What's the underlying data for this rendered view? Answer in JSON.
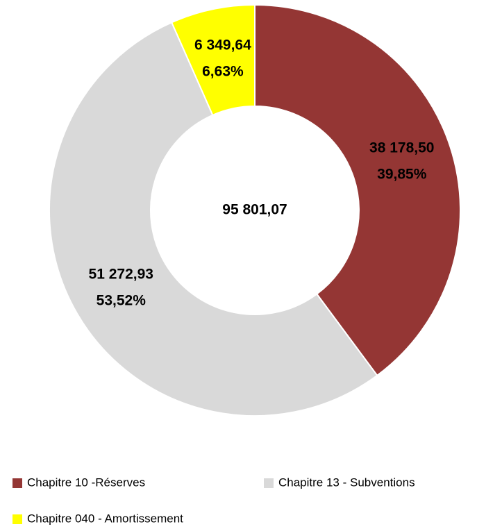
{
  "chart_data": {
    "type": "donut",
    "categories": [
      "Chapitre 10 -Réserves",
      "Chapitre 13 - Subventions",
      "Chapitre 040 - Amortissement"
    ],
    "values": [
      38178.5,
      51272.93,
      6349.64
    ],
    "value_labels": [
      "38 178,50",
      "51 272,93",
      "6 349,64"
    ],
    "percentages": [
      39.85,
      53.52,
      6.63
    ],
    "percent_labels": [
      "39,85%",
      "53,52%",
      "6,63%"
    ],
    "colors": [
      "#943634",
      "#d9d9d9",
      "#ffff00"
    ],
    "total_label": "95 801,07",
    "legend": "bottom"
  }
}
